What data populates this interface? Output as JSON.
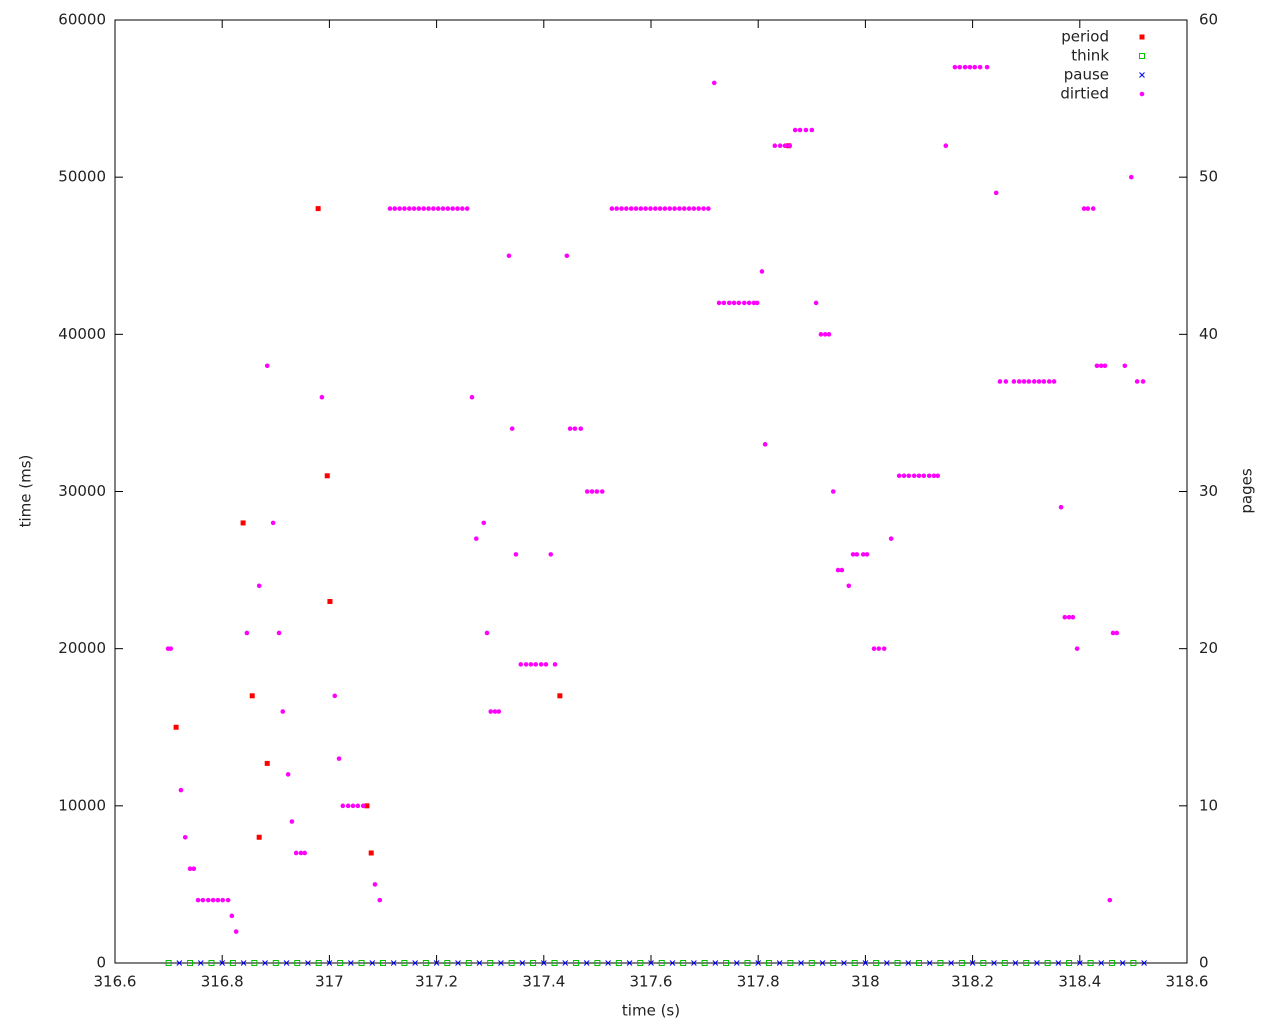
{
  "chart_data": {
    "type": "scatter",
    "xlabel": "time (s)",
    "ylabel": "time (ms)",
    "y2label": "pages",
    "xlim": [
      316.6,
      318.6
    ],
    "xticks": [
      316.6,
      316.8,
      317,
      317.2,
      317.4,
      317.6,
      317.8,
      318,
      318.2,
      318.4,
      318.6
    ],
    "ylim": [
      0,
      60000
    ],
    "yticks": [
      0,
      10000,
      20000,
      30000,
      40000,
      50000,
      60000
    ],
    "y2lim": [
      0,
      60
    ],
    "y2ticks": [
      0,
      10,
      20,
      30,
      40,
      50,
      60
    ],
    "legend": "top-right",
    "series": [
      {
        "name": "period",
        "color": "#ff0000",
        "marker": "square",
        "x": [
          316.714,
          316.839,
          316.856,
          316.869,
          316.884,
          316.979,
          316.996,
          317.001,
          317.07,
          317.078,
          317.43,
          317.857
        ],
        "values": [
          15000,
          28000,
          17000,
          8000,
          12700,
          48000,
          31000,
          23000,
          10000,
          7000,
          17000,
          52000
        ]
      },
      {
        "name": "think",
        "color": "#00c000",
        "marker": "open-square",
        "x": [
          316.7,
          316.74,
          316.78,
          316.82,
          316.86,
          316.9,
          316.94,
          316.98,
          317.02,
          317.06,
          317.1,
          317.14,
          317.18,
          317.22,
          317.26,
          317.3,
          317.34,
          317.38,
          317.42,
          317.46,
          317.5,
          317.54,
          317.58,
          317.62,
          317.66,
          317.7,
          317.74,
          317.78,
          317.82,
          317.86,
          317.9,
          317.94,
          317.98,
          318.02,
          318.06,
          318.1,
          318.14,
          318.18,
          318.22,
          318.26,
          318.3,
          318.34,
          318.38,
          318.42,
          318.46,
          318.5
        ],
        "values": [
          0,
          0,
          0,
          0,
          0,
          0,
          0,
          0,
          0,
          0,
          0,
          0,
          0,
          0,
          0,
          0,
          0,
          0,
          0,
          0,
          0,
          0,
          0,
          0,
          0,
          0,
          0,
          0,
          0,
          0,
          0,
          0,
          0,
          0,
          0,
          0,
          0,
          0,
          0,
          0,
          0,
          0,
          0,
          0,
          0,
          0
        ]
      },
      {
        "name": "pause",
        "color": "#0000ff",
        "marker": "cross",
        "x": [
          316.72,
          316.76,
          316.8,
          316.84,
          316.88,
          316.92,
          316.96,
          317.0,
          317.04,
          317.08,
          317.12,
          317.16,
          317.2,
          317.24,
          317.28,
          317.32,
          317.36,
          317.4,
          317.44,
          317.48,
          317.52,
          317.56,
          317.6,
          317.64,
          317.68,
          317.72,
          317.76,
          317.8,
          317.84,
          317.88,
          317.92,
          317.96,
          318.0,
          318.04,
          318.08,
          318.12,
          318.16,
          318.2,
          318.24,
          318.28,
          318.32,
          318.36,
          318.4,
          318.44,
          318.48,
          318.52
        ],
        "values": [
          0,
          0,
          0,
          0,
          0,
          0,
          0,
          0,
          0,
          0,
          0,
          0,
          0,
          0,
          0,
          0,
          0,
          0,
          0,
          0,
          0,
          0,
          0,
          0,
          0,
          0,
          0,
          0,
          0,
          0,
          0,
          0,
          0,
          0,
          0,
          0,
          0,
          0,
          0,
          0,
          0,
          0,
          0,
          0,
          0,
          0
        ]
      },
      {
        "name": "dirtied",
        "color": "#ff00ff",
        "marker": "circle",
        "axis": "y2",
        "x": [
          316.699,
          316.704,
          316.723,
          316.731,
          316.74,
          316.747,
          316.755,
          316.764,
          316.774,
          316.783,
          316.792,
          316.801,
          316.811,
          316.818,
          316.826,
          316.846,
          316.869,
          316.884,
          316.895,
          316.906,
          316.913,
          316.923,
          316.93,
          316.938,
          316.947,
          316.954,
          316.986,
          317.01,
          317.018,
          317.025,
          317.035,
          317.044,
          317.053,
          317.063,
          317.085,
          317.094,
          317.113,
          317.122,
          317.131,
          317.14,
          317.149,
          317.158,
          317.167,
          317.176,
          317.185,
          317.194,
          317.203,
          317.212,
          317.221,
          317.23,
          317.239,
          317.248,
          317.257,
          317.266,
          317.274,
          317.288,
          317.294,
          317.301,
          317.309,
          317.316,
          317.335,
          317.341,
          317.348,
          317.357,
          317.367,
          317.376,
          317.385,
          317.395,
          317.404,
          317.413,
          317.421,
          317.443,
          317.449,
          317.458,
          317.469,
          317.481,
          317.49,
          317.499,
          317.509,
          317.527,
          317.536,
          317.545,
          317.554,
          317.563,
          317.572,
          317.581,
          317.59,
          317.599,
          317.608,
          317.617,
          317.626,
          317.635,
          317.644,
          317.653,
          317.662,
          317.671,
          317.68,
          317.689,
          317.698,
          317.707,
          317.718,
          317.727,
          317.736,
          317.746,
          317.755,
          317.764,
          317.774,
          317.783,
          317.792,
          317.798,
          317.807,
          317.813,
          317.831,
          317.841,
          317.85,
          317.859,
          317.869,
          317.878,
          317.889,
          317.9,
          317.908,
          317.917,
          317.925,
          317.932,
          317.94,
          317.949,
          317.956,
          317.969,
          317.977,
          317.984,
          317.996,
          318.003,
          318.016,
          318.025,
          318.035,
          318.048,
          318.063,
          318.072,
          318.081,
          318.091,
          318.1,
          318.109,
          318.119,
          318.128,
          318.135,
          318.15,
          318.167,
          318.176,
          318.186,
          318.195,
          318.204,
          318.214,
          318.227,
          318.244,
          318.251,
          318.262,
          318.277,
          318.287,
          318.296,
          318.305,
          318.315,
          318.324,
          318.333,
          318.343,
          318.352,
          318.365,
          318.372,
          318.38,
          318.387,
          318.395,
          318.408,
          318.415,
          318.425,
          318.432,
          318.44,
          318.447,
          318.456,
          318.462,
          318.469,
          318.484,
          318.496,
          318.507,
          318.518
        ],
        "values": [
          20,
          20,
          11,
          8,
          6,
          6,
          4,
          4,
          4,
          4,
          4,
          4,
          4,
          3,
          2,
          21,
          24,
          38,
          28,
          21,
          16,
          12,
          9,
          7,
          7,
          7,
          36,
          17,
          13,
          10,
          10,
          10,
          10,
          10,
          5,
          4,
          48,
          48,
          48,
          48,
          48,
          48,
          48,
          48,
          48,
          48,
          48,
          48,
          48,
          48,
          48,
          48,
          48,
          36,
          27,
          28,
          21,
          16,
          16,
          16,
          45,
          34,
          26,
          19,
          19,
          19,
          19,
          19,
          19,
          26,
          19,
          45,
          34,
          34,
          34,
          30,
          30,
          30,
          30,
          48,
          48,
          48,
          48,
          48,
          48,
          48,
          48,
          48,
          48,
          48,
          48,
          48,
          48,
          48,
          48,
          48,
          48,
          48,
          48,
          48,
          56,
          42,
          42,
          42,
          42,
          42,
          42,
          42,
          42,
          42,
          44,
          33,
          52,
          52,
          52,
          52,
          53,
          53,
          53,
          53,
          42,
          40,
          40,
          40,
          30,
          25,
          25,
          24,
          26,
          26,
          26,
          26,
          20,
          20,
          20,
          27,
          31,
          31,
          31,
          31,
          31,
          31,
          31,
          31,
          31,
          52,
          57,
          57,
          57,
          57,
          57,
          57,
          57,
          49,
          37,
          37,
          37,
          37,
          37,
          37,
          37,
          37,
          37,
          37,
          37,
          29,
          22,
          22,
          22,
          20,
          48,
          48,
          48,
          38,
          38,
          38,
          4,
          21,
          21,
          38,
          50,
          37,
          37
        ]
      }
    ]
  }
}
